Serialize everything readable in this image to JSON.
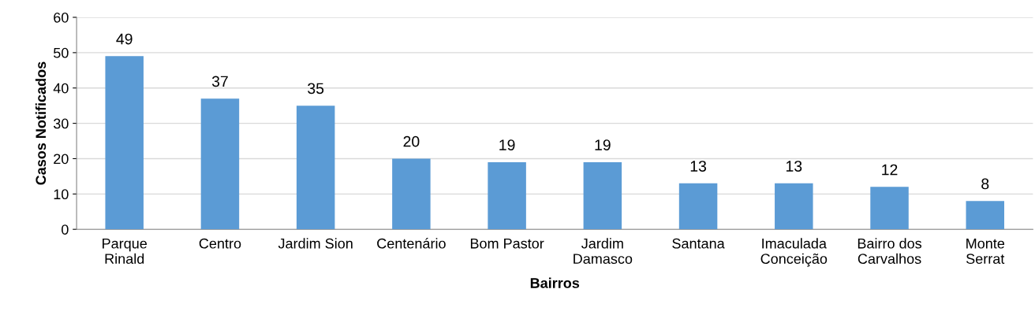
{
  "chart_data": {
    "type": "bar",
    "xlabel": "Bairros",
    "ylabel": "Casos Notificados",
    "categories": [
      "Parque\nRinald",
      "Centro",
      "Jardim Sion",
      "Centenário",
      "Bom Pastor",
      "Jardim\nDamasco",
      "Santana",
      "Imaculada\nConceição",
      "Bairro dos\nCarvalhos",
      "Monte\nSerrat"
    ],
    "values": [
      49,
      37,
      35,
      20,
      19,
      19,
      13,
      13,
      12,
      8
    ],
    "color": "#5b9bd5",
    "ylim": [
      0,
      60
    ],
    "yticks": [
      0,
      10,
      20,
      30,
      40,
      50,
      60
    ],
    "grid": "y",
    "data_labels": true,
    "legend": false
  }
}
